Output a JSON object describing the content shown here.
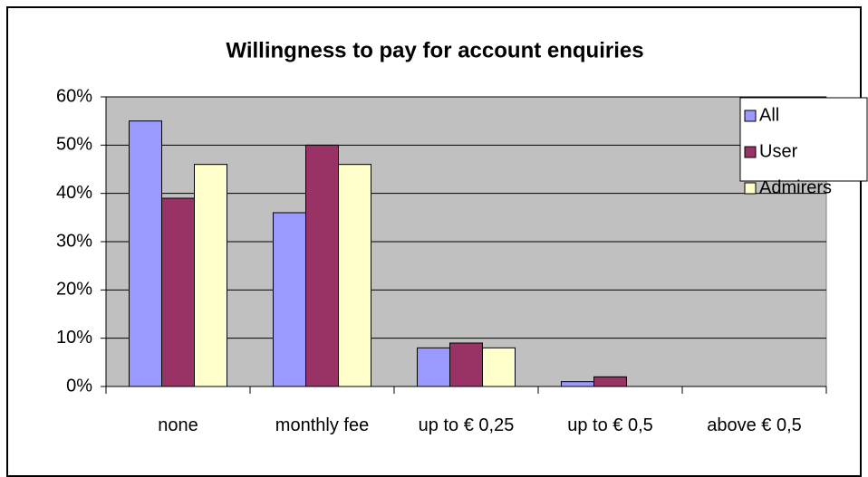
{
  "chart_data": {
    "type": "bar",
    "title": "Willingness to pay for account enquiries",
    "categories": [
      "none",
      "monthly fee",
      "up to € 0,25",
      "up to € 0,5",
      "above € 0,5"
    ],
    "series": [
      {
        "name": "All",
        "color": "#9999ff",
        "values": [
          55,
          36,
          8,
          1,
          0
        ]
      },
      {
        "name": "User",
        "color": "#993366",
        "values": [
          39,
          50,
          9,
          2,
          0
        ]
      },
      {
        "name": "Admirers",
        "color": "#ffffcc",
        "values": [
          46,
          46,
          8,
          0,
          0
        ]
      }
    ],
    "ylim": [
      0,
      60
    ],
    "yticks": [
      {
        "value": 0,
        "label": "0%"
      },
      {
        "value": 10,
        "label": "10%"
      },
      {
        "value": 20,
        "label": "20%"
      },
      {
        "value": 30,
        "label": "30%"
      },
      {
        "value": 40,
        "label": "40%"
      },
      {
        "value": 50,
        "label": "50%"
      },
      {
        "value": 60,
        "label": "60%"
      }
    ],
    "grid": true,
    "plot_background": "#c0c0c0",
    "legend": "right"
  }
}
